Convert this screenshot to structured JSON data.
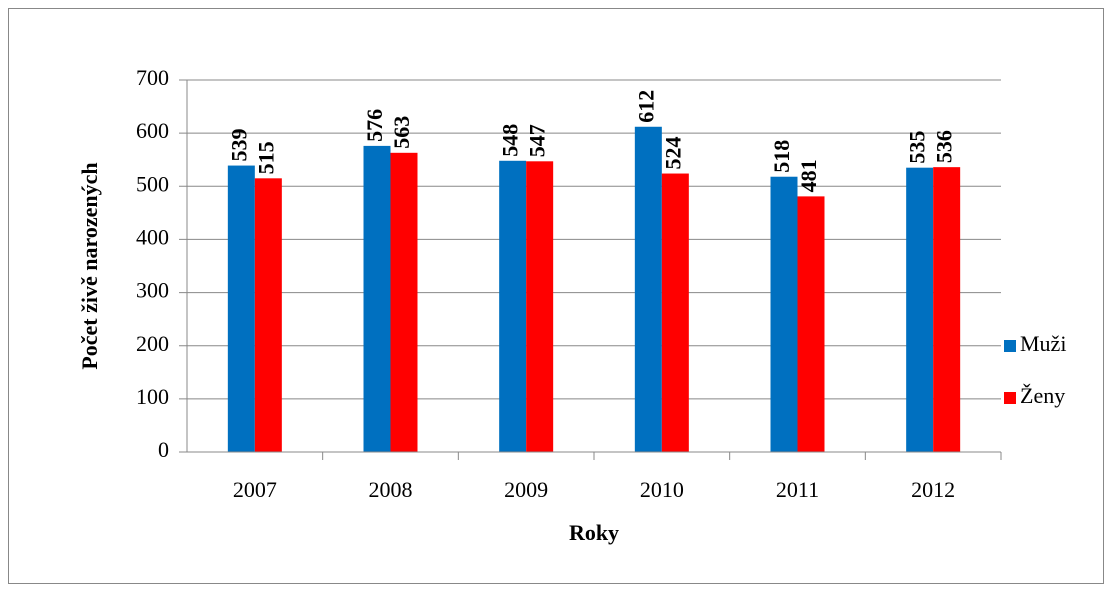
{
  "chart_data": {
    "type": "bar",
    "categories": [
      "2007",
      "2008",
      "2009",
      "2010",
      "2011",
      "2012"
    ],
    "series": [
      {
        "name": "Muži",
        "color": "#0070c0",
        "values": [
          539,
          576,
          548,
          612,
          518,
          535
        ]
      },
      {
        "name": "Ženy",
        "color": "#ff0000",
        "values": [
          515,
          563,
          547,
          524,
          481,
          536
        ]
      }
    ],
    "xlabel": "Roky",
    "ylabel": "Počet živě narozených",
    "ylim": [
      0,
      700
    ],
    "yticks": [
      0,
      100,
      200,
      300,
      400,
      500,
      600,
      700
    ],
    "grid": true,
    "legend": "right"
  }
}
